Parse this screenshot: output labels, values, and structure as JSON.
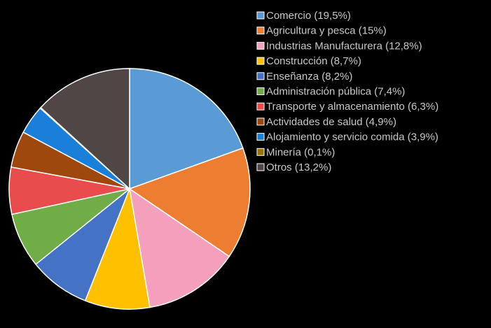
{
  "chart_data": {
    "type": "pie",
    "categories": [
      "Comercio (19,5%)",
      "Agricultura y pesca (15%)",
      "Industrias Manufacturera (12,8%)",
      "Construcción (8,7%)",
      "Enseñanza (8,2%)",
      "Administración pública (7,4%)",
      "Transporte y almacenamiento (6,3%)",
      "Actividades de salud (4,9%)",
      "Alojamiento y servicio comida (3,9%)",
      "Minería (0,1%)",
      "Otros (13,2%)"
    ],
    "values": [
      19.5,
      15,
      12.8,
      8.7,
      8.2,
      7.4,
      6.3,
      4.9,
      3.9,
      0.1,
      13.2
    ],
    "colors": [
      "#5b9bd5",
      "#ed7d31",
      "#f4a0bd",
      "#ffc000",
      "#4472c4",
      "#70ad47",
      "#e84c4c",
      "#9e480e",
      "#1a7fd8",
      "#997300",
      "#504646"
    ],
    "legend": "right"
  }
}
